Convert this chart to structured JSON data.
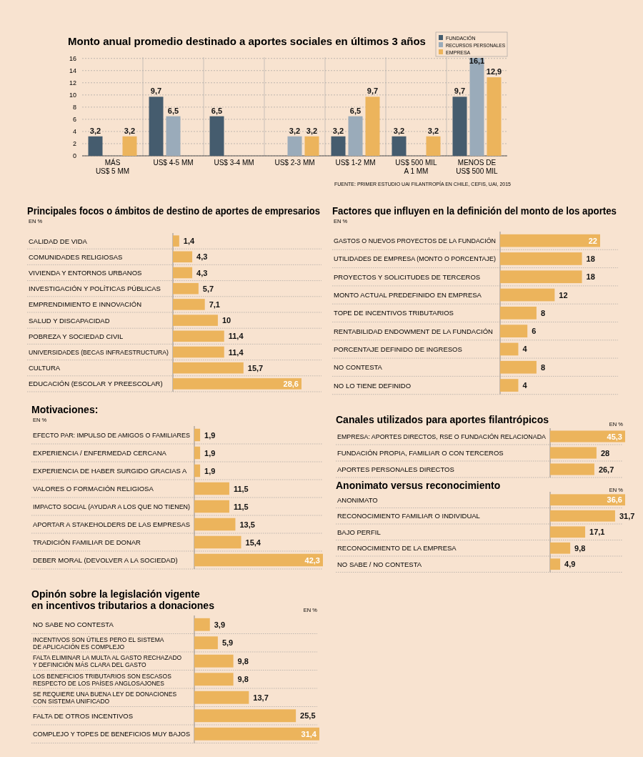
{
  "chart_data": [
    {
      "type": "bar",
      "title": "Monto anual promedio destinado a aportes sociales en últimos 3 años",
      "categories": [
        "MÁS\nUS$ 5 MM",
        "US$ 4-5 MM",
        "US$ 3-4 MM",
        "US$ 2-3 MM",
        "US$ 1-2 MM",
        "US$ 500 MIL\nA 1 MM",
        "MENOS DE\nUS$ 500 MIL"
      ],
      "series": [
        {
          "name": "FUNDACIÓN",
          "color": "#455c6e",
          "values": [
            3.2,
            9.7,
            6.5,
            null,
            3.2,
            3.2,
            9.7
          ],
          "value_labels": [
            "3,2",
            "9,7",
            "6,5",
            null,
            "3,2",
            "3,2",
            "9,7"
          ]
        },
        {
          "name": "RECURSOS PERSONALES",
          "color": "#9aabba",
          "values": [
            null,
            6.5,
            null,
            3.2,
            6.5,
            null,
            16.1
          ],
          "value_labels": [
            null,
            "6,5",
            null,
            "3,2",
            "6,5",
            null,
            "16,1"
          ]
        },
        {
          "name": "EMPRESA",
          "color": "#ecb45c",
          "values": [
            3.2,
            null,
            null,
            3.2,
            9.7,
            3.2,
            12.9
          ],
          "value_labels": [
            "3,2",
            null,
            null,
            "3,2",
            "9,7",
            "3,2",
            "12,9"
          ]
        }
      ],
      "ylim": [
        0,
        16.2
      ],
      "yticks": [
        0,
        2,
        4,
        6,
        8,
        10,
        12,
        14,
        16
      ],
      "grid": "y",
      "legend": "top right",
      "annotations": [
        "FUENTE: PRIMER ESTUDIO UAI FILANTROPÍA EN CHILE, CEFIS, UAI, 2015"
      ]
    },
    {
      "type": "bar",
      "orientation": "horizontal",
      "title": "Principales focos o ámbitos de destino de aportes de empresarios",
      "subtitle": "EN %",
      "color": "#ecb45c",
      "categories": [
        "CALIDAD DE VIDA",
        "COMUNIDADES RELIGIOSAS",
        "VIVIENDA Y ENTORNOS URBANOS",
        "INVESTIGACIÓN Y POLÍTICAS PÚBLICAS",
        "EMPRENDIMIENTO E INNOVACIÓN",
        "SALUD Y DISCAPACIDAD",
        "POBREZA Y SOCIEDAD CIVIL",
        "UNIVERSIDADES (BECAS INFRAESTRUCTURA)",
        "CULTURA",
        "EDUCACIÓN (ESCOLAR Y PREESCOLAR)"
      ],
      "values": [
        1.4,
        4.3,
        4.3,
        5.7,
        7.1,
        10,
        11.4,
        11.4,
        15.7,
        28.6
      ],
      "value_labels": [
        "1,4",
        "4,3",
        "4,3",
        "5,7",
        "7,1",
        "10",
        "11,4",
        "11,4",
        "15,7",
        "28,6"
      ]
    },
    {
      "type": "bar",
      "orientation": "horizontal",
      "title": "Factores que influyen en la definición del monto de los aportes",
      "subtitle": "EN %",
      "color": "#ecb45c",
      "categories": [
        "GASTOS O NUEVOS PROYECTOS DE LA FUNDACIÓN",
        "UTILIDADES DE EMPRESA (MONTO O PORCENTAJE)",
        "PROYECTOS Y SOLICITUDES DE TERCEROS",
        "MONTO ACTUAL PREDEFINIDO EN EMPRESA",
        "TOPE DE INCENTIVOS TRIBUTARIOS",
        "RENTABILIDAD ENDOWMENT DE LA FUNDACIÓN",
        "PORCENTAJE DEFINIDO DE INGRESOS",
        "NO CONTESTA",
        "NO LO TIENE DEFINIDO"
      ],
      "values": [
        22,
        18,
        18,
        12,
        8,
        6,
        4,
        8,
        4
      ],
      "value_labels": [
        "22",
        "18",
        "18",
        "12",
        "8",
        "6",
        "4",
        "8",
        "4"
      ]
    },
    {
      "type": "bar",
      "orientation": "horizontal",
      "title": "Motivaciones:",
      "subtitle": "EN %",
      "color": "#ecb45c",
      "categories": [
        "EFECTO PAR: IMPULSO DE AMIGOS O FAMILIARES",
        "EXPERIENCIA / ENFERMEDAD CERCANA",
        "EXPERIENCIA DE HABER SURGIDO GRACIAS A",
        "VALORES O FORMACIÓN RELIGIOSA",
        "IMPACTO SOCIAL (AYUDAR A LOS QUE NO TIENEN)",
        "APORTAR A STAKEHOLDERS DE LAS EMPRESAS",
        "TRADICIÓN FAMILIAR DE DONAR",
        "DEBER MORAL (DEVOLVER A LA SOCIEDAD)"
      ],
      "values": [
        1.9,
        1.9,
        1.9,
        11.5,
        11.5,
        13.5,
        15.4,
        42.3
      ],
      "value_labels": [
        "1,9",
        "1,9",
        "1,9",
        "11,5",
        "11,5",
        "13,5",
        "15,4",
        "42,3"
      ]
    },
    {
      "type": "bar",
      "orientation": "horizontal",
      "title": "Canales utilizados para aportes filantrópicos",
      "subtitle": "EN %",
      "color": "#ecb45c",
      "categories": [
        "EMPRESA: APORTES DIRECTOS, RSE O FUNDACIÓN RELACIONADA",
        "FUNDACIÓN PROPIA, FAMILIAR O CON TERCEROS",
        "APORTES PERSONALES DIRECTOS"
      ],
      "values": [
        45.3,
        28,
        26.7
      ],
      "value_labels": [
        "45,3",
        "28",
        "26,7"
      ]
    },
    {
      "type": "bar",
      "orientation": "horizontal",
      "title": "Anonimato versus reconocimiento",
      "subtitle": "EN %",
      "color": "#ecb45c",
      "categories": [
        "ANONIMATO",
        "RECONOCIMIENTO FAMILIAR O INDIVIDUAL",
        "BAJO PERFIL",
        "RECONOCIMIENTO DE LA EMPRESA",
        "NO SABE / NO CONTESTA"
      ],
      "values": [
        36.6,
        31.7,
        17.1,
        9.8,
        4.9
      ],
      "value_labels": [
        "36,6",
        "31,7",
        "17,1",
        "9,8",
        "4,9"
      ]
    },
    {
      "type": "bar",
      "orientation": "horizontal",
      "title": "Opinón sobre la legislación vigente\nen incentivos tributarios a donaciones",
      "subtitle": "EN %",
      "color": "#ecb45c",
      "categories": [
        "NO SABE NO CONTESTA",
        "INCENTIVOS SON ÚTILES PERO EL SISTEMA\nDE APLICACIÓN ES COMPLEJO",
        "FALTA ELIMINAR LA MULTA AL GASTO RECHAZADO\nY DEFINICIÓN MÁS CLARA DEL GASTO",
        "LOS BENEFICIOS TRIBUTARIOS SON ESCASOS\nRESPECTO DE LOS PAÍSES ANGLOSAJONES",
        "SE REQUIERE UNA BUENA LEY DE DONACIONES\nCON SISTEMA UNIFICADO",
        "FALTA DE OTROS INCENTIVOS",
        "COMPLEJO Y TOPES DE BENEFICIOS MUY BAJOS"
      ],
      "values": [
        3.9,
        5.9,
        9.8,
        9.8,
        13.7,
        25.5,
        31.4
      ],
      "value_labels": [
        "3,9",
        "5,9",
        "9,8",
        "9,8",
        "13,7",
        "25,5",
        "31,4"
      ]
    }
  ]
}
